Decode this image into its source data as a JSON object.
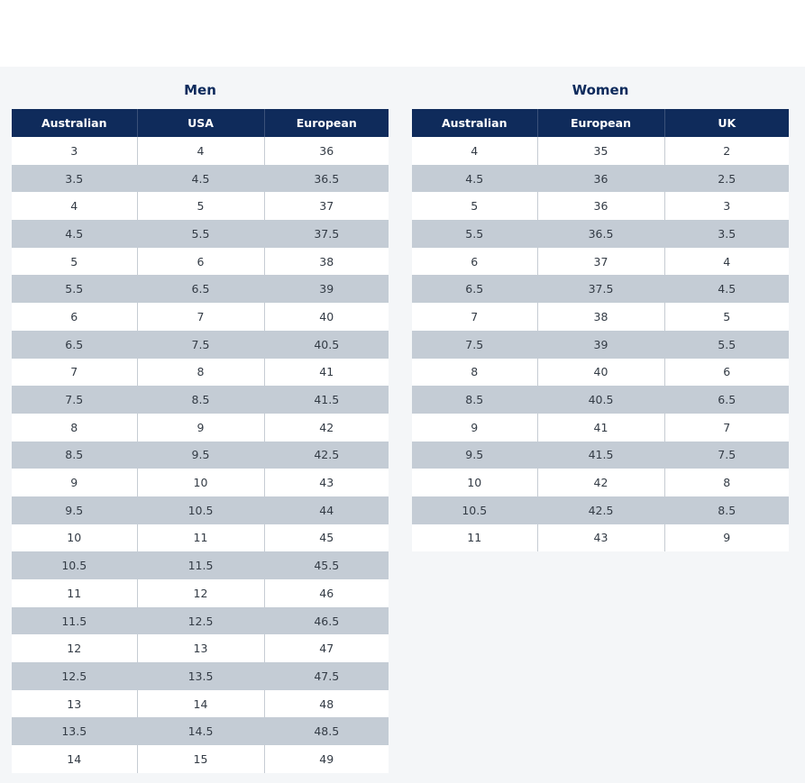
{
  "men": {
    "title": "Men",
    "headers": [
      "Australian",
      "USA",
      "European"
    ],
    "rows": [
      [
        "3",
        "4",
        "36"
      ],
      [
        "3.5",
        "4.5",
        "36.5"
      ],
      [
        "4",
        "5",
        "37"
      ],
      [
        "4.5",
        "5.5",
        "37.5"
      ],
      [
        "5",
        "6",
        "38"
      ],
      [
        "5.5",
        "6.5",
        "39"
      ],
      [
        "6",
        "7",
        "40"
      ],
      [
        "6.5",
        "7.5",
        "40.5"
      ],
      [
        "7",
        "8",
        "41"
      ],
      [
        "7.5",
        "8.5",
        "41.5"
      ],
      [
        "8",
        "9",
        "42"
      ],
      [
        "8.5",
        "9.5",
        "42.5"
      ],
      [
        "9",
        "10",
        "43"
      ],
      [
        "9.5",
        "10.5",
        "44"
      ],
      [
        "10",
        "11",
        "45"
      ],
      [
        "10.5",
        "11.5",
        "45.5"
      ],
      [
        "11",
        "12",
        "46"
      ],
      [
        "11.5",
        "12.5",
        "46.5"
      ],
      [
        "12",
        "13",
        "47"
      ],
      [
        "12.5",
        "13.5",
        "47.5"
      ],
      [
        "13",
        "14",
        "48"
      ],
      [
        "13.5",
        "14.5",
        "48.5"
      ],
      [
        "14",
        "15",
        "49"
      ]
    ]
  },
  "women": {
    "title": "Women",
    "headers": [
      "Australian",
      "European",
      "UK"
    ],
    "rows": [
      [
        "4",
        "35",
        "2"
      ],
      [
        "4.5",
        "36",
        "2.5"
      ],
      [
        "5",
        "36",
        "3"
      ],
      [
        "5.5",
        "36.5",
        "3.5"
      ],
      [
        "6",
        "37",
        "4"
      ],
      [
        "6.5",
        "37.5",
        "4.5"
      ],
      [
        "7",
        "38",
        "5"
      ],
      [
        "7.5",
        "39",
        "5.5"
      ],
      [
        "8",
        "40",
        "6"
      ],
      [
        "8.5",
        "40.5",
        "6.5"
      ],
      [
        "9",
        "41",
        "7"
      ],
      [
        "9.5",
        "41.5",
        "7.5"
      ],
      [
        "10",
        "42",
        "8"
      ],
      [
        "10.5",
        "42.5",
        "8.5"
      ],
      [
        "11",
        "43",
        "9"
      ]
    ]
  },
  "colors": {
    "header_bg": "#0f2b5b",
    "title_text": "#0d2a5c",
    "stripe": "#c4ccd5",
    "panel_bg": "#f4f6f8"
  }
}
